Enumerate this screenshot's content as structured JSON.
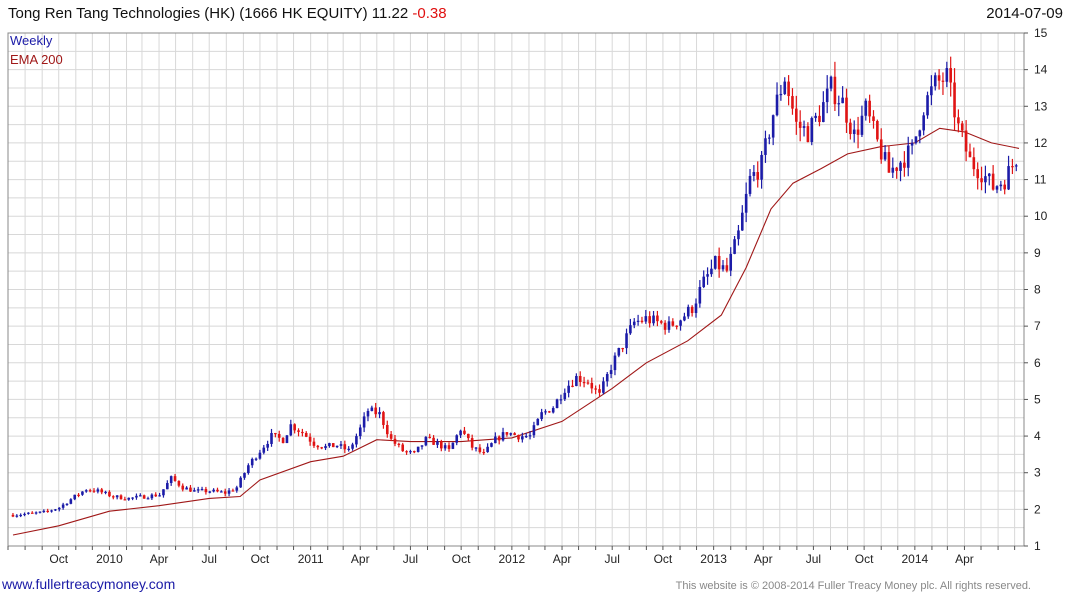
{
  "header": {
    "title": "Tong Ren Tang Technologies (HK) (1666 HK EQUITY) 11.22",
    "change": "-0.38",
    "date": "2014-07-09"
  },
  "footer": {
    "link": "www.fullertreacymoney.com",
    "copyright": "This website is © 2008-2014 Fuller Treacy Money plc. All rights reserved."
  },
  "colors": {
    "up": "#1c1ca8",
    "down": "#e01414",
    "ema": "#a01818",
    "grid": "#d8d8d8",
    "legend_weekly": "#1c1ca8",
    "legend_ema": "#a01818"
  },
  "chart_data": {
    "type": "line",
    "subtype": "weekly price bars with moving average",
    "yaxis_position": "right",
    "ylim": [
      1,
      15
    ],
    "yticks": [
      1,
      2,
      3,
      4,
      5,
      6,
      7,
      8,
      9,
      10,
      11,
      12,
      13,
      14,
      15
    ],
    "xticks": [
      {
        "label": "Oct",
        "date": "2009-10-01"
      },
      {
        "label": "2010",
        "date": "2010-01-01"
      },
      {
        "label": "Apr",
        "date": "2010-04-01"
      },
      {
        "label": "Jul",
        "date": "2010-07-01"
      },
      {
        "label": "Oct",
        "date": "2010-10-01"
      },
      {
        "label": "2011",
        "date": "2011-01-01"
      },
      {
        "label": "Apr",
        "date": "2011-04-01"
      },
      {
        "label": "Jul",
        "date": "2011-07-01"
      },
      {
        "label": "Oct",
        "date": "2011-10-01"
      },
      {
        "label": "2012",
        "date": "2012-01-01"
      },
      {
        "label": "Apr",
        "date": "2012-04-01"
      },
      {
        "label": "Jul",
        "date": "2012-07-01"
      },
      {
        "label": "Oct",
        "date": "2012-10-01"
      },
      {
        "label": "2013",
        "date": "2013-01-01"
      },
      {
        "label": "Apr",
        "date": "2013-04-01"
      },
      {
        "label": "Jul",
        "date": "2013-07-01"
      },
      {
        "label": "Oct",
        "date": "2013-10-01"
      },
      {
        "label": "2014",
        "date": "2014-01-01"
      },
      {
        "label": "Apr",
        "date": "2014-04-01"
      }
    ],
    "legend": [
      "Weekly",
      "EMA 200"
    ],
    "grid": true,
    "series": [
      {
        "name": "Weekly",
        "kind": "price",
        "points": [
          [
            "2009-07-10",
            1.85
          ],
          [
            "2009-08-07",
            1.88
          ],
          [
            "2009-09-04",
            1.92
          ],
          [
            "2009-10-02",
            2.05
          ],
          [
            "2009-10-30",
            2.35
          ],
          [
            "2009-11-20",
            2.55
          ],
          [
            "2009-12-11",
            2.5
          ],
          [
            "2010-01-08",
            2.35
          ],
          [
            "2010-02-05",
            2.3
          ],
          [
            "2010-03-05",
            2.35
          ],
          [
            "2010-04-02",
            2.4
          ],
          [
            "2010-04-23",
            2.85
          ],
          [
            "2010-05-14",
            2.6
          ],
          [
            "2010-06-04",
            2.5
          ],
          [
            "2010-07-02",
            2.5
          ],
          [
            "2010-07-30",
            2.45
          ],
          [
            "2010-08-20",
            2.6
          ],
          [
            "2010-09-10",
            3.2
          ],
          [
            "2010-10-01",
            3.6
          ],
          [
            "2010-10-22",
            4.0
          ],
          [
            "2010-11-12",
            3.9
          ],
          [
            "2010-11-26",
            4.3
          ],
          [
            "2010-12-17",
            4.1
          ],
          [
            "2011-01-07",
            3.8
          ],
          [
            "2011-01-28",
            3.7
          ],
          [
            "2011-02-18",
            3.75
          ],
          [
            "2011-03-11",
            3.6
          ],
          [
            "2011-04-01",
            4.2
          ],
          [
            "2011-04-15",
            4.7
          ],
          [
            "2011-05-06",
            4.6
          ],
          [
            "2011-05-27",
            3.9
          ],
          [
            "2011-06-17",
            3.6
          ],
          [
            "2011-07-08",
            3.5
          ],
          [
            "2011-07-29",
            3.9
          ],
          [
            "2011-08-19",
            3.8
          ],
          [
            "2011-09-09",
            3.6
          ],
          [
            "2011-09-30",
            4.2
          ],
          [
            "2011-10-21",
            3.7
          ],
          [
            "2011-11-11",
            3.5
          ],
          [
            "2011-12-02",
            3.9
          ],
          [
            "2011-12-23",
            4.1
          ],
          [
            "2012-01-13",
            4.0
          ],
          [
            "2012-02-03",
            4.0
          ],
          [
            "2012-02-24",
            4.6
          ],
          [
            "2012-03-16",
            4.8
          ],
          [
            "2012-04-06",
            5.3
          ],
          [
            "2012-04-27",
            5.6
          ],
          [
            "2012-05-18",
            5.5
          ],
          [
            "2012-06-08",
            5.1
          ],
          [
            "2012-06-29",
            5.9
          ],
          [
            "2012-07-20",
            6.5
          ],
          [
            "2012-08-10",
            7.1
          ],
          [
            "2012-08-31",
            7.2
          ],
          [
            "2012-09-21",
            7.1
          ],
          [
            "2012-10-12",
            7.0
          ],
          [
            "2012-11-02",
            7.2
          ],
          [
            "2012-11-23",
            7.5
          ],
          [
            "2012-12-14",
            8.2
          ],
          [
            "2013-01-04",
            8.7
          ],
          [
            "2013-01-25",
            8.5
          ],
          [
            "2013-02-15",
            9.5
          ],
          [
            "2013-03-08",
            11.0
          ],
          [
            "2013-03-29",
            11.4
          ],
          [
            "2013-04-19",
            12.8
          ],
          [
            "2013-05-10",
            13.8
          ],
          [
            "2013-05-31",
            12.5
          ],
          [
            "2013-06-21",
            12.3
          ],
          [
            "2013-07-12",
            12.8
          ],
          [
            "2013-08-02",
            13.5
          ],
          [
            "2013-08-23",
            13.1
          ],
          [
            "2013-09-13",
            12.2
          ],
          [
            "2013-10-04",
            12.9
          ],
          [
            "2013-10-25",
            12.0
          ],
          [
            "2013-11-15",
            11.2
          ],
          [
            "2013-12-06",
            11.5
          ],
          [
            "2013-12-27",
            11.8
          ],
          [
            "2014-01-17",
            13.0
          ],
          [
            "2014-02-07",
            13.6
          ],
          [
            "2014-02-28",
            13.8
          ],
          [
            "2014-03-21",
            12.4
          ],
          [
            "2014-04-11",
            11.5
          ],
          [
            "2014-05-02",
            11.2
          ],
          [
            "2014-05-23",
            10.8
          ],
          [
            "2014-06-13",
            11.0
          ],
          [
            "2014-07-04",
            11.6
          ],
          [
            "2014-07-09",
            11.22
          ]
        ]
      },
      {
        "name": "EMA 200",
        "kind": "line",
        "points": [
          [
            "2009-07-10",
            1.3
          ],
          [
            "2009-10-01",
            1.55
          ],
          [
            "2010-01-01",
            1.95
          ],
          [
            "2010-04-01",
            2.1
          ],
          [
            "2010-07-01",
            2.3
          ],
          [
            "2010-08-26",
            2.35
          ],
          [
            "2010-10-01",
            2.8
          ],
          [
            "2011-01-01",
            3.3
          ],
          [
            "2011-03-01",
            3.45
          ],
          [
            "2011-05-01",
            3.9
          ],
          [
            "2011-07-01",
            3.85
          ],
          [
            "2011-10-01",
            3.85
          ],
          [
            "2012-01-01",
            3.95
          ],
          [
            "2012-04-01",
            4.4
          ],
          [
            "2012-07-01",
            5.3
          ],
          [
            "2012-09-01",
            6.0
          ],
          [
            "2012-11-15",
            6.6
          ],
          [
            "2013-01-15",
            7.3
          ],
          [
            "2013-03-01",
            8.6
          ],
          [
            "2013-04-15",
            10.2
          ],
          [
            "2013-05-25",
            10.9
          ],
          [
            "2013-07-15",
            11.3
          ],
          [
            "2013-09-01",
            11.7
          ],
          [
            "2013-11-01",
            11.9
          ],
          [
            "2014-01-01",
            12.0
          ],
          [
            "2014-02-15",
            12.4
          ],
          [
            "2014-04-01",
            12.3
          ],
          [
            "2014-05-20",
            12.0
          ],
          [
            "2014-07-09",
            11.85
          ]
        ]
      }
    ]
  }
}
